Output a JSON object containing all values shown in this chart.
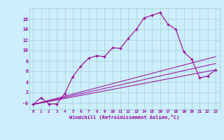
{
  "xlabel": "Windchill (Refroidissement éolien,°C)",
  "background_color": "#cceeff",
  "line_color": "#990099",
  "xlim": [
    -0.5,
    23.5
  ],
  "ylim": [
    -1.2,
    18
  ],
  "xticks": [
    0,
    1,
    2,
    3,
    4,
    5,
    6,
    7,
    8,
    9,
    10,
    11,
    12,
    13,
    14,
    15,
    16,
    17,
    18,
    19,
    20,
    21,
    22,
    23
  ],
  "yticks": [
    0,
    2,
    4,
    6,
    8,
    10,
    12,
    14,
    16
  ],
  "ytick_labels": [
    "-0",
    "2",
    "4",
    "6",
    "8",
    "10",
    "12",
    "14",
    "16"
  ],
  "series1_x": [
    0,
    1,
    2,
    3,
    4,
    5,
    6,
    7,
    8,
    9,
    10,
    11,
    12,
    13,
    14,
    15,
    16,
    17,
    18,
    19,
    20,
    21,
    22,
    23
  ],
  "series1_y": [
    -0.3,
    1.0,
    -0.2,
    -0.2,
    1.8,
    5.0,
    7.0,
    8.5,
    9.0,
    8.8,
    10.5,
    10.4,
    12.3,
    14.0,
    16.2,
    16.7,
    17.2,
    15.0,
    14.0,
    9.7,
    8.3,
    4.8,
    5.1,
    6.3
  ],
  "series2_x": [
    0,
    23
  ],
  "series2_y": [
    -0.3,
    6.3
  ],
  "series3_x": [
    0,
    23
  ],
  "series3_y": [
    -0.3,
    7.5
  ],
  "series4_x": [
    0,
    23
  ],
  "series4_y": [
    -0.3,
    8.8
  ]
}
